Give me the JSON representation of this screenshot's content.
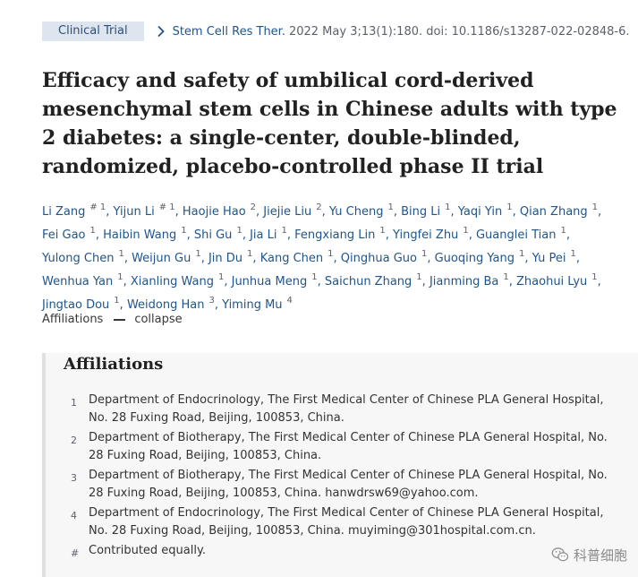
{
  "header": {
    "article_type": "Clinical Trial",
    "journal": "Stem Cell Res Ther.",
    "citation": "2022 May 3;13(1):180. doi: 10.1186/s13287-022-02848-6."
  },
  "title": "Efficacy and safety of umbilical cord-derived mesenchymal stem cells in Chinese adults with type 2 diabetes: a single-center, double-blinded, randomized, placebo-controlled phase II trial",
  "authors": [
    {
      "name": "Li Zang",
      "sup": "# 1"
    },
    {
      "name": "Yijun Li",
      "sup": "# 1"
    },
    {
      "name": "Haojie Hao",
      "sup": "2"
    },
    {
      "name": "Jiejie Liu",
      "sup": "2"
    },
    {
      "name": "Yu Cheng",
      "sup": "1"
    },
    {
      "name": "Bing Li",
      "sup": "1"
    },
    {
      "name": "Yaqi Yin",
      "sup": "1"
    },
    {
      "name": "Qian Zhang",
      "sup": "1"
    },
    {
      "name": "Fei Gao",
      "sup": "1"
    },
    {
      "name": "Haibin Wang",
      "sup": "1"
    },
    {
      "name": "Shi Gu",
      "sup": "1"
    },
    {
      "name": "Jia Li",
      "sup": "1"
    },
    {
      "name": "Fengxiang Lin",
      "sup": "1"
    },
    {
      "name": "Yingfei Zhu",
      "sup": "1"
    },
    {
      "name": "Guanglei Tian",
      "sup": "1"
    },
    {
      "name": "Yulong Chen",
      "sup": "1"
    },
    {
      "name": "Weijun Gu",
      "sup": "1"
    },
    {
      "name": "Jin Du",
      "sup": "1"
    },
    {
      "name": "Kang Chen",
      "sup": "1"
    },
    {
      "name": "Qinghua Guo",
      "sup": "1"
    },
    {
      "name": "Guoqing Yang",
      "sup": "1"
    },
    {
      "name": "Yu Pei",
      "sup": "1"
    },
    {
      "name": "Wenhua Yan",
      "sup": "1"
    },
    {
      "name": "Xianling Wang",
      "sup": "1"
    },
    {
      "name": "Junhua Meng",
      "sup": "1"
    },
    {
      "name": "Saichun Zhang",
      "sup": "1"
    },
    {
      "name": "Jianming Ba",
      "sup": "1"
    },
    {
      "name": "Zhaohui Lyu",
      "sup": "1"
    },
    {
      "name": "Jingtao Dou",
      "sup": "1"
    },
    {
      "name": "Weidong Han",
      "sup": "3"
    },
    {
      "name": "Yiming Mu",
      "sup": "4"
    }
  ],
  "affiliations_toggle": {
    "label": "Affiliations",
    "action": "collapse"
  },
  "affiliations": {
    "heading": "Affiliations",
    "items": [
      {
        "num": "1",
        "text": "Department of Endocrinology, The First Medical Center of Chinese PLA General Hospital, No. 28 Fuxing Road, Beijing, 100853, China."
      },
      {
        "num": "2",
        "text": "Department of Biotherapy, The First Medical Center of Chinese PLA General Hospital, No. 28 Fuxing Road, Beijing, 100853, China."
      },
      {
        "num": "3",
        "text": "Department of Biotherapy, The First Medical Center of Chinese PLA General Hospital, No. 28 Fuxing Road, Beijing, 100853, China. hanwdrsw69@yahoo.com."
      },
      {
        "num": "4",
        "text": "Department of Endocrinology, The First Medical Center of Chinese PLA General Hospital, No. 28 Fuxing Road, Beijing, 100853, China. muyiming@301hospital.com.cn."
      },
      {
        "num": "#",
        "text": "Contributed equally."
      }
    ]
  },
  "watermark": {
    "text": "科普细胞",
    "icon": "wechat-icon"
  }
}
